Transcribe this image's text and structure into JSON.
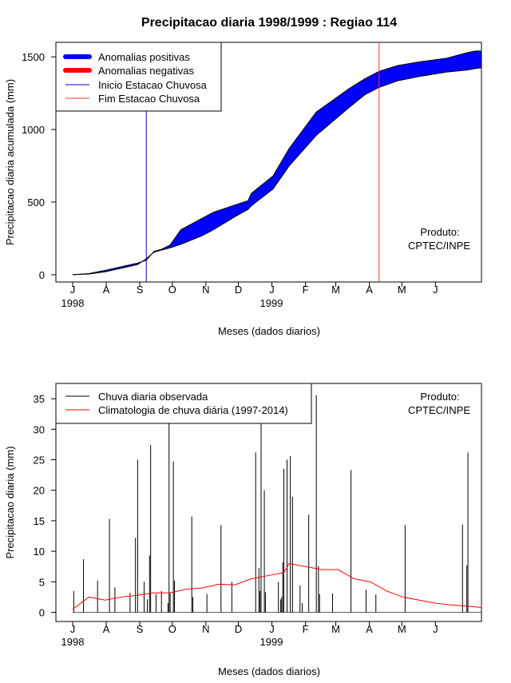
{
  "title": "Precipitacao diaria 1998/1999 : Regiao 114",
  "chart_data": [
    {
      "type": "area",
      "ylabel": "Precipitacao diaria acumulada (mm)",
      "xlabel": "Meses (dados diarios)",
      "ylim": [
        -50,
        1600
      ],
      "yticks": [
        0,
        500,
        1000,
        1500
      ],
      "month_ticks": [
        "J",
        "A",
        "S",
        "O",
        "N",
        "D",
        "J",
        "F",
        "M",
        "A",
        "M",
        "J"
      ],
      "year_labels": [
        "1998",
        "1999"
      ],
      "legend": {
        "position": "top-left",
        "items": [
          "Anomalias positivas",
          "Anomalias negativas",
          "Inicio Estacao Chuvosa",
          "Fim Estacao Chuvosa"
        ]
      },
      "annotation": [
        "Produto:",
        "CPTEC/INPE"
      ],
      "rainy_season_start_day": 68,
      "rainy_season_end_day": 283,
      "colors": {
        "positive": "#0000ff",
        "negative": "#ff0000",
        "start_line": "#0000cc",
        "end_line": "#ff3333"
      },
      "day": [
        0,
        15,
        30,
        45,
        60,
        68,
        75,
        82,
        90,
        100,
        120,
        130,
        140,
        150,
        162,
        165,
        185,
        200,
        225,
        255,
        270,
        283,
        300,
        320,
        345,
        365,
        372,
        377
      ],
      "observed": [
        0,
        8,
        30,
        55,
        80,
        100,
        160,
        175,
        205,
        310,
        390,
        430,
        455,
        480,
        510,
        560,
        680,
        870,
        1120,
        1280,
        1350,
        1400,
        1440,
        1465,
        1490,
        1530,
        1540,
        1540
      ],
      "climatology": [
        0,
        5,
        20,
        45,
        70,
        110,
        155,
        170,
        185,
        210,
        270,
        310,
        355,
        400,
        450,
        475,
        590,
        750,
        960,
        1150,
        1240,
        1290,
        1335,
        1365,
        1395,
        1410,
        1420,
        1425
      ]
    },
    {
      "type": "bar",
      "ylabel": "Precipitacao diaria (mm)",
      "xlabel": "Meses (dados diarios)",
      "ylim": [
        -1.5,
        37.5
      ],
      "yticks": [
        0,
        5,
        10,
        15,
        20,
        25,
        30,
        35
      ],
      "month_ticks": [
        "J",
        "A",
        "S",
        "O",
        "N",
        "D",
        "J",
        "F",
        "M",
        "A",
        "M",
        "J"
      ],
      "year_labels": [
        "1998",
        "1999"
      ],
      "legend": {
        "position": "top-left",
        "items": [
          "Chuva diaria observada",
          "Climatologia de chuva diária (1997-2014)"
        ]
      },
      "annotation": [
        "Produto:",
        "CPTEC/INPE"
      ],
      "colors": {
        "observed": "#000000",
        "climatology": "#ff0000"
      },
      "series": [
        {
          "name": "Chuva diaria observada",
          "daily_values": [
            0,
            3.5,
            0,
            0,
            0,
            0,
            0,
            0,
            0,
            0,
            8.7,
            0,
            0,
            0,
            0,
            0,
            0,
            0,
            0,
            0,
            0,
            0,
            0,
            5.2,
            0,
            0,
            0,
            0,
            0,
            0,
            0,
            0,
            0,
            0,
            15.3,
            0,
            0,
            0,
            0,
            4.1,
            0,
            0,
            0,
            0,
            0,
            0,
            0,
            0,
            0,
            0,
            0,
            0,
            0,
            3.2,
            0,
            0,
            0,
            0,
            12.2,
            0,
            25,
            0,
            0,
            0,
            0,
            0,
            5,
            0,
            0,
            2.1,
            0,
            9.3,
            27.4,
            0,
            0,
            0,
            0,
            3,
            0,
            0,
            0,
            0,
            3.5,
            0,
            0,
            0,
            0,
            0,
            1.5,
            31.2,
            3.1,
            0,
            0,
            24.7,
            5.2,
            0,
            0,
            0,
            0,
            0,
            0,
            0,
            0,
            0,
            0,
            0,
            0,
            0,
            0,
            0,
            15.7,
            2.5,
            0,
            0,
            0,
            0,
            0,
            0,
            0,
            0,
            0,
            0,
            0,
            0,
            3,
            0,
            0,
            0,
            0,
            0,
            0,
            0,
            0,
            0,
            0,
            0,
            0,
            14.3,
            0,
            0,
            0,
            0,
            0,
            0,
            0,
            0,
            0,
            5,
            0,
            0,
            0,
            0,
            0,
            0,
            0,
            0,
            0,
            0,
            0,
            0,
            0,
            0,
            0,
            0,
            0,
            0,
            0,
            0,
            0,
            26.2,
            0,
            0,
            7.3,
            3.5,
            31.2,
            0,
            0,
            20,
            3.3,
            0,
            0,
            0,
            0,
            0,
            0,
            0,
            0,
            0,
            0,
            0,
            5,
            0,
            2.1,
            2.5,
            8.2,
            23.5,
            0,
            0,
            25,
            0,
            0,
            25.6,
            0,
            18.9,
            0,
            0,
            0,
            0,
            0,
            0,
            4.4,
            0,
            1.5,
            0,
            0,
            0,
            0,
            0,
            16,
            0,
            0,
            0,
            0,
            0,
            0,
            35.6,
            0,
            7.6,
            3,
            0,
            0,
            0,
            0,
            0,
            0,
            0,
            0,
            0,
            0,
            0,
            3.1,
            0,
            0,
            0,
            0,
            0,
            0,
            0,
            0,
            0,
            0,
            0,
            0,
            0,
            0,
            0,
            0,
            23.3,
            0,
            0,
            0,
            0,
            0,
            0,
            0,
            0,
            0,
            0,
            0,
            0,
            0,
            3.7,
            0,
            0,
            0,
            0,
            0,
            0,
            0,
            0,
            2.9,
            0,
            0,
            0,
            0,
            0,
            0,
            0,
            0,
            0,
            0,
            0,
            0,
            0,
            0,
            0,
            0,
            0,
            0,
            0,
            0,
            0,
            0,
            0,
            0,
            0,
            0,
            14.3,
            0,
            0,
            0,
            0,
            0,
            0,
            0,
            0,
            0,
            0,
            0,
            0,
            0,
            0,
            0,
            0,
            0,
            0,
            0,
            0,
            0,
            0,
            0,
            0,
            0,
            0,
            0,
            0,
            0,
            0,
            0,
            0,
            0,
            0,
            0,
            0,
            0,
            0,
            0,
            0,
            0,
            0,
            0,
            0,
            0,
            0,
            0,
            0,
            0,
            0,
            0,
            0,
            14.4,
            0,
            0,
            0,
            7.7,
            26.2,
            0,
            0,
            0,
            0,
            0,
            0,
            0,
            0,
            0,
            0,
            0,
            0
          ]
        },
        {
          "name": "Climatologia de chuva diária (1997-2014)",
          "x": [
            0,
            15,
            30,
            45,
            60,
            75,
            90,
            105,
            120,
            135,
            150,
            165,
            180,
            195,
            200,
            215,
            230,
            245,
            260,
            275,
            290,
            305,
            320,
            335,
            350,
            365,
            377
          ],
          "values": [
            0.5,
            2.5,
            2.0,
            2.5,
            2.8,
            3.2,
            3.2,
            3.8,
            4.0,
            4.6,
            4.5,
            5.5,
            6.0,
            6.5,
            8.0,
            7.5,
            7.0,
            7.0,
            5.5,
            5.0,
            3.5,
            2.5,
            2.0,
            1.5,
            1.2,
            1.0,
            0.8
          ]
        }
      ]
    }
  ]
}
